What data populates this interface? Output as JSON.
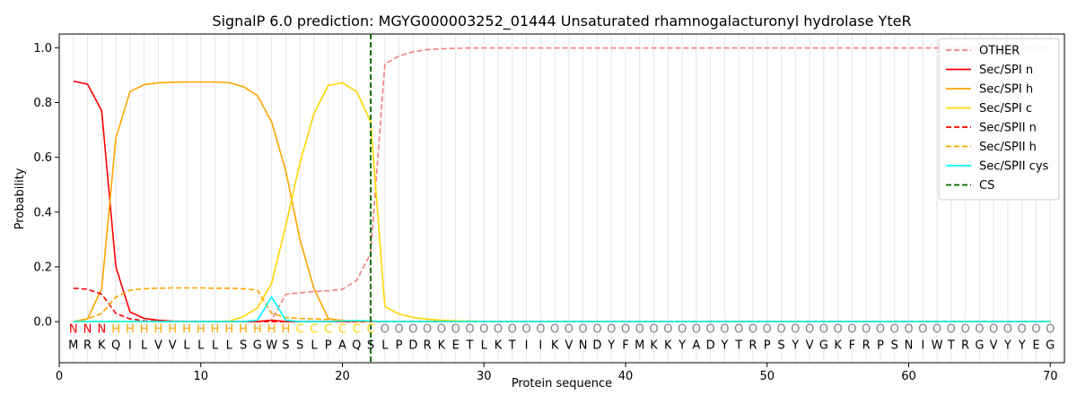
{
  "chart_data": {
    "type": "line",
    "title": "SignalP 6.0 prediction: MGYG000003252_01444 Unsaturated rhamnogalacturonyl hydrolase YteR",
    "xlabel": "Protein sequence",
    "ylabel": "Probability",
    "xlim": [
      0,
      71
    ],
    "ylim": [
      -0.15,
      1.05
    ],
    "xticks": [
      0,
      10,
      20,
      30,
      40,
      50,
      60,
      70
    ],
    "yticks": [
      0.0,
      0.2,
      0.4,
      0.6,
      0.8,
      1.0
    ],
    "grid": "vertical lines at every residue",
    "legend_position": "top-right",
    "x": [
      1,
      2,
      3,
      4,
      5,
      6,
      7,
      8,
      9,
      10,
      11,
      12,
      13,
      14,
      15,
      16,
      17,
      18,
      19,
      20,
      21,
      22,
      23,
      24,
      25,
      26,
      27,
      28,
      29,
      30,
      31,
      32,
      33,
      34,
      35,
      36,
      37,
      38,
      39,
      40,
      41,
      42,
      43,
      44,
      45,
      46,
      47,
      48,
      49,
      50,
      51,
      52,
      53,
      54,
      55,
      56,
      57,
      58,
      59,
      60,
      61,
      62,
      63,
      64,
      65,
      66,
      67,
      68,
      69,
      70
    ],
    "sequence": [
      "M",
      "R",
      "K",
      "Q",
      "I",
      "L",
      "V",
      "V",
      "L",
      "L",
      "L",
      "L",
      "S",
      "G",
      "W",
      "S",
      "S",
      "L",
      "P",
      "A",
      "Q",
      "S",
      "L",
      "P",
      "D",
      "R",
      "K",
      "E",
      "T",
      "L",
      "K",
      "T",
      "I",
      "I",
      "K",
      "V",
      "N",
      "D",
      "Y",
      "F",
      "M",
      "K",
      "K",
      "Y",
      "A",
      "D",
      "Y",
      "T",
      "R",
      "P",
      "S",
      "Y",
      "V",
      "G",
      "K",
      "F",
      "R",
      "P",
      "S",
      "N",
      "I",
      "W",
      "T",
      "R",
      "G",
      "V",
      "Y",
      "Y",
      "E",
      "G"
    ],
    "labels": [
      "N",
      "N",
      "N",
      "H",
      "H",
      "H",
      "H",
      "H",
      "H",
      "H",
      "H",
      "H",
      "H",
      "H",
      "H",
      "H",
      "C",
      "C",
      "C",
      "C",
      "C",
      "C",
      "O",
      "O",
      "O",
      "O",
      "O",
      "O",
      "O",
      "O",
      "O",
      "O",
      "O",
      "O",
      "O",
      "O",
      "O",
      "O",
      "O",
      "O",
      "O",
      "O",
      "O",
      "O",
      "O",
      "O",
      "O",
      "O",
      "O",
      "O",
      "O",
      "O",
      "O",
      "O",
      "O",
      "O",
      "O",
      "O",
      "O",
      "O",
      "O",
      "O",
      "O",
      "O",
      "O",
      "O",
      "O",
      "O",
      "O",
      "O"
    ],
    "label_colors": {
      "N": "#ff0000",
      "H": "#ffa500",
      "C": "#ffd700",
      "O": "#808080"
    },
    "cleavage_site": 22,
    "series": [
      {
        "name": "OTHER",
        "color": "#f08080",
        "dash": "dashed",
        "values": [
          0,
          0,
          0,
          0,
          0,
          0,
          0,
          0,
          0,
          0,
          0,
          0,
          0,
          0,
          0.005,
          0.1,
          0.105,
          0.11,
          0.113,
          0.118,
          0.15,
          0.25,
          0.94,
          0.97,
          0.985,
          0.993,
          0.996,
          0.998,
          0.999,
          0.999,
          0.999,
          0.999,
          0.999,
          0.999,
          0.999,
          0.999,
          0.999,
          0.999,
          0.999,
          0.999,
          0.999,
          0.999,
          0.999,
          0.999,
          0.999,
          0.999,
          0.999,
          0.999,
          0.999,
          0.999,
          0.999,
          0.999,
          0.999,
          0.999,
          0.999,
          0.999,
          0.999,
          0.999,
          0.999,
          0.999,
          0.999,
          0.999,
          0.999,
          0.999,
          0.999,
          0.999,
          0.999,
          0.999,
          0.999,
          0.999
        ]
      },
      {
        "name": "Sec/SPI n",
        "color": "#ff0000",
        "dash": "solid",
        "values": [
          0.878,
          0.867,
          0.77,
          0.2,
          0.035,
          0.012,
          0.005,
          0.002,
          0.001,
          0.001,
          0,
          0,
          0,
          0,
          0.005,
          0,
          0,
          0,
          0,
          0,
          0,
          0,
          0,
          0,
          0,
          0,
          0,
          0,
          0,
          0,
          0,
          0,
          0,
          0,
          0,
          0,
          0,
          0,
          0,
          0,
          0,
          0,
          0,
          0,
          0,
          0,
          0,
          0,
          0,
          0,
          0,
          0,
          0,
          0,
          0,
          0,
          0,
          0,
          0,
          0,
          0,
          0,
          0,
          0,
          0,
          0,
          0,
          0,
          0,
          0
        ]
      },
      {
        "name": "Sec/SPI h",
        "color": "#ffa500",
        "dash": "solid",
        "values": [
          0,
          0.01,
          0.12,
          0.67,
          0.84,
          0.865,
          0.872,
          0.874,
          0.875,
          0.875,
          0.875,
          0.872,
          0.858,
          0.825,
          0.73,
          0.55,
          0.3,
          0.12,
          0.012,
          0.003,
          0.001,
          0,
          0,
          0,
          0,
          0,
          0,
          0,
          0,
          0,
          0,
          0,
          0,
          0,
          0,
          0,
          0,
          0,
          0,
          0,
          0,
          0,
          0,
          0,
          0,
          0,
          0,
          0,
          0,
          0,
          0,
          0,
          0,
          0,
          0,
          0,
          0,
          0,
          0,
          0,
          0,
          0,
          0,
          0,
          0,
          0,
          0,
          0,
          0,
          0
        ]
      },
      {
        "name": "Sec/SPI c",
        "color": "#ffd700",
        "dash": "solid",
        "values": [
          0,
          0,
          0,
          0,
          0,
          0,
          0,
          0,
          0,
          0,
          0,
          0.002,
          0.018,
          0.05,
          0.14,
          0.35,
          0.58,
          0.76,
          0.862,
          0.872,
          0.84,
          0.73,
          0.055,
          0.028,
          0.015,
          0.009,
          0.005,
          0.003,
          0.002,
          0.001,
          0.001,
          0.001,
          0.001,
          0.001,
          0.001,
          0.001,
          0.001,
          0.001,
          0.001,
          0.001,
          0.001,
          0.001,
          0.001,
          0.001,
          0.001,
          0.001,
          0.001,
          0.001,
          0.001,
          0.001,
          0.001,
          0.001,
          0.001,
          0.001,
          0.001,
          0.001,
          0.001,
          0.001,
          0.001,
          0.001,
          0.001,
          0.001,
          0.001,
          0.001,
          0.001,
          0.001,
          0.001,
          0.001,
          0.001,
          0.001
        ]
      },
      {
        "name": "Sec/SPII n",
        "color": "#ff0000",
        "dash": "dashed",
        "values": [
          0.122,
          0.118,
          0.1,
          0.03,
          0.01,
          0.003,
          0.001,
          0,
          0,
          0,
          0,
          0,
          0,
          0,
          0,
          0,
          0,
          0,
          0,
          0,
          0,
          0,
          0,
          0,
          0,
          0,
          0,
          0,
          0,
          0,
          0,
          0,
          0,
          0,
          0,
          0,
          0,
          0,
          0,
          0,
          0,
          0,
          0,
          0,
          0,
          0,
          0,
          0,
          0,
          0,
          0,
          0,
          0,
          0,
          0,
          0,
          0,
          0,
          0,
          0,
          0,
          0,
          0,
          0,
          0,
          0,
          0,
          0,
          0,
          0
        ]
      },
      {
        "name": "Sec/SPII h",
        "color": "#ffa500",
        "dash": "dashed",
        "values": [
          0,
          0.01,
          0.03,
          0.09,
          0.115,
          0.12,
          0.122,
          0.123,
          0.123,
          0.123,
          0.122,
          0.122,
          0.12,
          0.115,
          0.03,
          0.015,
          0.012,
          0.01,
          0.008,
          0.005,
          0.002,
          0.001,
          0,
          0,
          0,
          0,
          0,
          0,
          0,
          0,
          0,
          0,
          0,
          0,
          0,
          0,
          0,
          0,
          0,
          0,
          0,
          0,
          0,
          0,
          0,
          0,
          0,
          0,
          0,
          0,
          0,
          0,
          0,
          0,
          0,
          0,
          0,
          0,
          0,
          0,
          0,
          0,
          0,
          0,
          0,
          0,
          0,
          0,
          0,
          0
        ]
      },
      {
        "name": "Sec/SPII cys",
        "color": "#00ffff",
        "dash": "solid",
        "values": [
          0,
          0,
          0,
          0,
          0,
          0,
          0,
          0,
          0,
          0,
          0,
          0,
          0,
          0.005,
          0.09,
          0.005,
          0,
          0,
          0,
          0.002,
          0.004,
          0.002,
          0,
          0,
          0,
          0,
          0,
          0,
          0,
          0,
          0,
          0,
          0,
          0,
          0,
          0,
          0,
          0,
          0,
          0,
          0,
          0,
          0,
          0,
          0,
          0,
          0,
          0,
          0,
          0,
          0,
          0,
          0,
          0,
          0,
          0,
          0,
          0,
          0,
          0,
          0,
          0,
          0,
          0,
          0,
          0,
          0,
          0,
          0,
          0
        ]
      }
    ],
    "cs_legend": {
      "name": "CS",
      "color": "#006400",
      "dash": "dashed"
    }
  }
}
